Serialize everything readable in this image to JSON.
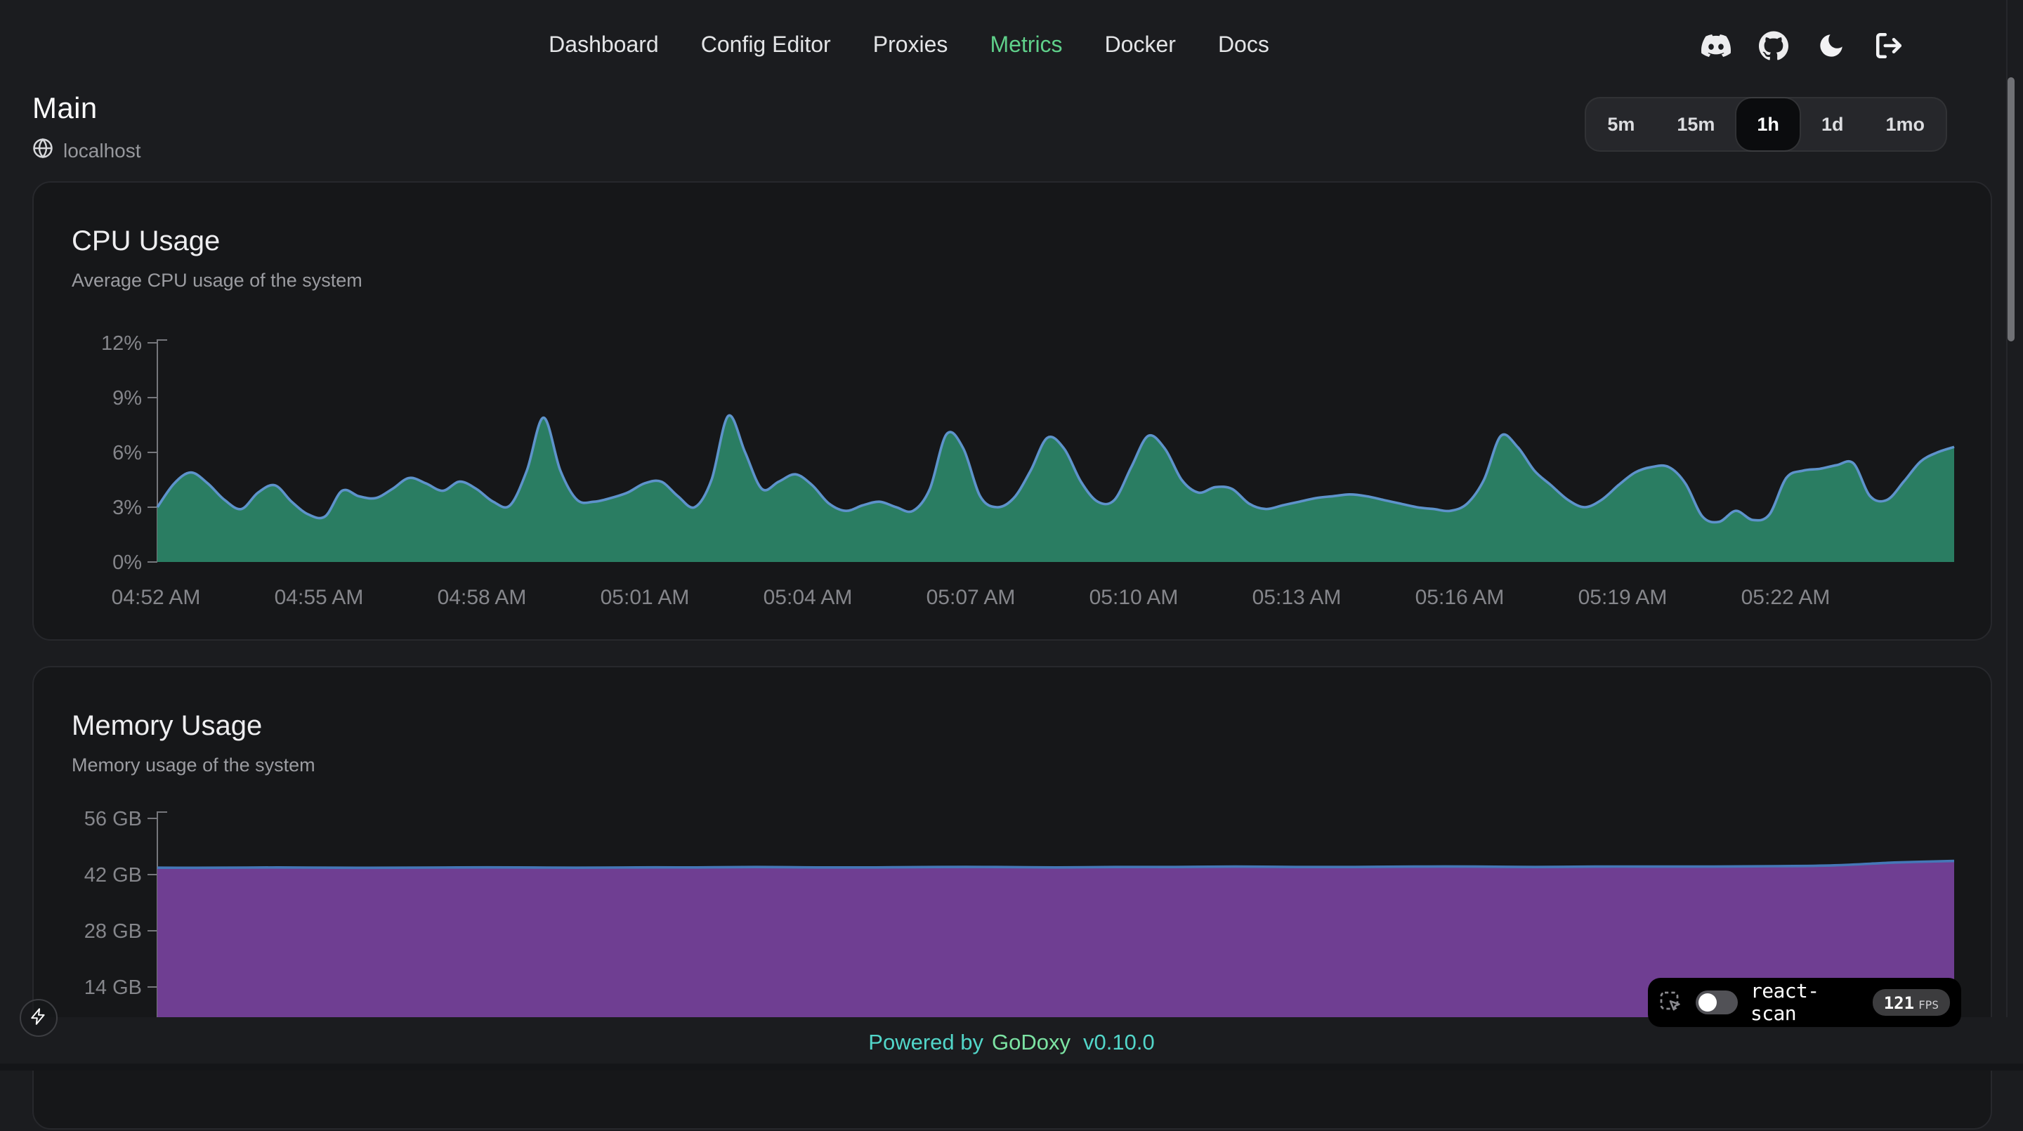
{
  "header": {
    "nav": [
      {
        "label": "Dashboard",
        "active": false
      },
      {
        "label": "Config Editor",
        "active": false
      },
      {
        "label": "Proxies",
        "active": false
      },
      {
        "label": "Metrics",
        "active": true
      },
      {
        "label": "Docker",
        "active": false
      },
      {
        "label": "Docs",
        "active": false
      }
    ],
    "icons": [
      "discord-icon",
      "github-icon",
      "dark-mode-icon",
      "logout-icon"
    ]
  },
  "page": {
    "title": "Main",
    "host": "localhost"
  },
  "time_range": {
    "options": [
      "5m",
      "15m",
      "1h",
      "1d",
      "1mo"
    ],
    "selected": "1h"
  },
  "footer": {
    "powered_by": "Powered by",
    "brand": "GoDoxy",
    "version": "v0.10.0"
  },
  "react_scan": {
    "label": "react-scan",
    "fps": "121",
    "fps_unit": "FPS",
    "toggle_on": false
  },
  "colors": {
    "accent_green": "#5fd08a",
    "footer_teal": "#52d6c9",
    "footer_brand_green": "#7ce3a3",
    "page_bg": "#1b1c1f",
    "card_bg": "#161719"
  },
  "chart_data": [
    {
      "type": "area",
      "title": "CPU Usage",
      "subtitle": "Average CPU usage of the system",
      "xlabel": "",
      "ylabel": "",
      "unit": "%",
      "ylim": [
        0,
        12
      ],
      "grid": false,
      "legend": "none",
      "y_ticks": [
        {
          "value": 0,
          "label": "0%"
        },
        {
          "value": 3,
          "label": "3%"
        },
        {
          "value": 6,
          "label": "6%"
        },
        {
          "value": 9,
          "label": "9%"
        },
        {
          "value": 12,
          "label": "12%"
        }
      ],
      "x_labels": [
        "04:52 AM",
        "04:55 AM",
        "04:58 AM",
        "05:01 AM",
        "05:04 AM",
        "05:07 AM",
        "05:10 AM",
        "05:13 AM",
        "05:16 AM",
        "05:19 AM",
        "05:22 AM"
      ],
      "colors": {
        "fill": "#2a7d62",
        "stroke": "#5e93cb"
      },
      "series": [
        {
          "name": "CPU",
          "values": [
            3.0,
            4.3,
            4.9,
            4.3,
            3.4,
            2.9,
            3.8,
            4.2,
            3.3,
            2.6,
            2.5,
            3.9,
            3.6,
            3.5,
            4.0,
            4.6,
            4.3,
            3.9,
            4.4,
            4.0,
            3.3,
            3.1,
            5.0,
            7.9,
            5.0,
            3.4,
            3.3,
            3.5,
            3.8,
            4.3,
            4.4,
            3.6,
            3.0,
            4.5,
            8.0,
            6.0,
            4.0,
            4.4,
            4.8,
            4.2,
            3.2,
            2.8,
            3.1,
            3.3,
            3.0,
            2.8,
            4.0,
            7.0,
            6.2,
            3.6,
            3.0,
            3.5,
            5.0,
            6.8,
            6.2,
            4.4,
            3.3,
            3.4,
            5.2,
            6.9,
            6.2,
            4.5,
            3.8,
            4.1,
            4.0,
            3.2,
            2.9,
            3.1,
            3.3,
            3.5,
            3.6,
            3.7,
            3.6,
            3.4,
            3.2,
            3.0,
            2.9,
            2.8,
            3.2,
            4.5,
            6.9,
            6.3,
            5.0,
            4.2,
            3.4,
            3.0,
            3.4,
            4.2,
            4.9,
            5.2,
            5.2,
            4.3,
            2.5,
            2.2,
            2.8,
            2.3,
            2.6,
            4.6,
            5.0,
            5.1,
            5.3,
            5.4,
            3.6,
            3.4,
            4.4,
            5.5,
            6.0,
            6.3
          ]
        }
      ]
    },
    {
      "type": "area",
      "title": "Memory Usage",
      "subtitle": "Memory usage of the system",
      "xlabel": "",
      "ylabel": "",
      "unit": "GB",
      "ylim": [
        0,
        57.5
      ],
      "grid": false,
      "legend": "none",
      "y_ticks": [
        {
          "value": 14,
          "label": "14 GB"
        },
        {
          "value": 28,
          "label": "28 GB"
        },
        {
          "value": 42,
          "label": "42 GB"
        },
        {
          "value": 56,
          "label": "56 GB"
        }
      ],
      "x_labels": [],
      "colors": {
        "fill": "#6f3e92",
        "stroke": "#4577b7"
      },
      "series": [
        {
          "name": "Memory",
          "values": [
            43.7,
            43.7,
            43.8,
            43.7,
            43.7,
            43.8,
            43.8,
            43.7,
            43.8,
            43.8,
            43.9,
            43.8,
            43.8,
            43.9,
            43.9,
            43.8,
            43.9,
            43.9,
            44.0,
            43.9,
            43.9,
            44.0,
            44.0,
            43.9,
            44.0,
            44.0,
            44.0,
            44.1,
            44.3,
            45.0,
            45.4
          ]
        }
      ]
    }
  ]
}
